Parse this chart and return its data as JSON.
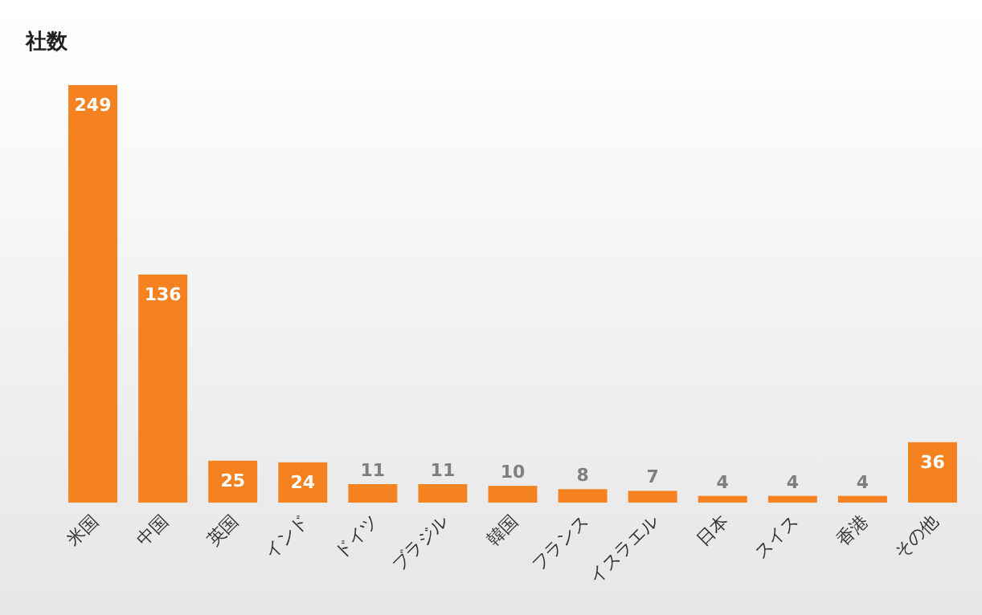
{
  "chart_data": {
    "type": "bar",
    "title": "社数",
    "categories": [
      "米国",
      "中国",
      "英国",
      "インド",
      "ドイツ",
      "ブラジル",
      "韓国",
      "フランス",
      "イスラエル",
      "日本",
      "スイス",
      "香港",
      "その他"
    ],
    "values": [
      249,
      136,
      25,
      24,
      11,
      11,
      10,
      8,
      7,
      4,
      4,
      4,
      36
    ],
    "color": "#f58220",
    "data_labels": true
  }
}
